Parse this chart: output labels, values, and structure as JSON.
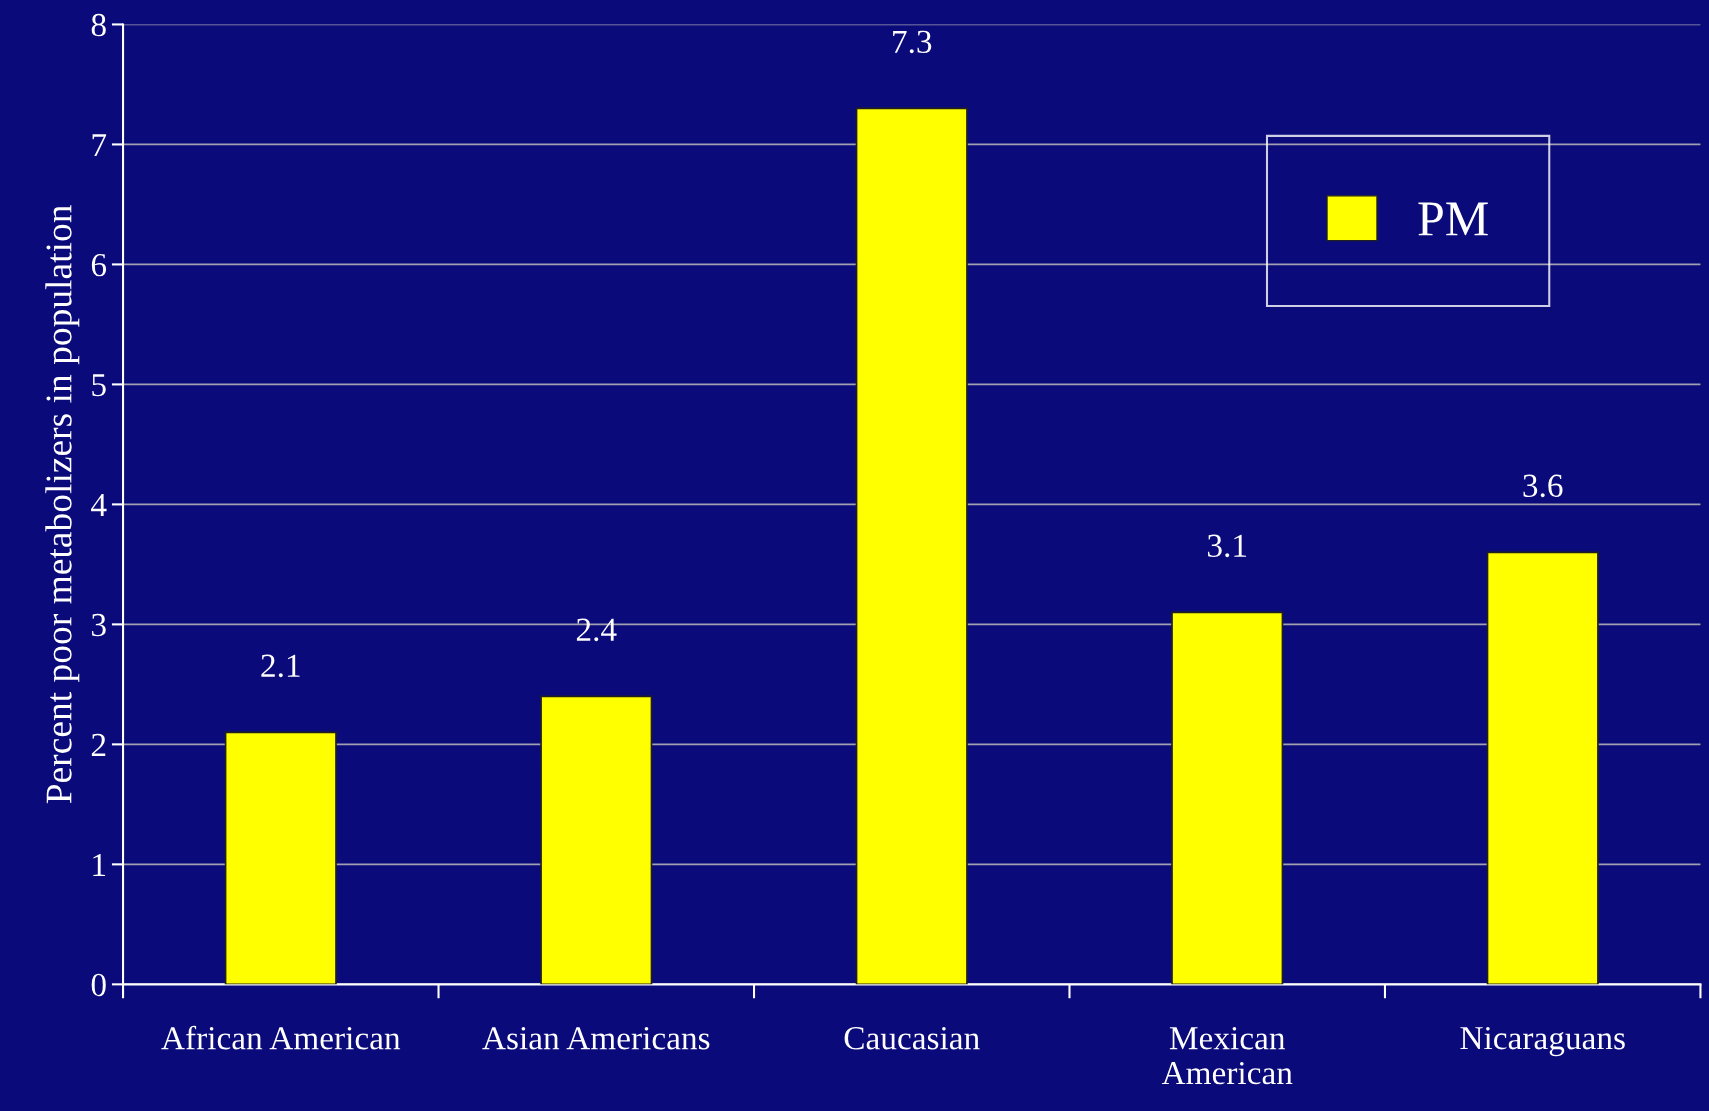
{
  "chart_data": {
    "type": "bar",
    "ylabel": "Percent poor metabolizers in population",
    "categories": [
      "African American",
      "Asian Americans",
      "Caucasian",
      "Mexican\nAmerican",
      "Nicaraguans"
    ],
    "series": [
      {
        "name": "PM",
        "color": "#ffff00",
        "values": [
          2.1,
          2.4,
          7.3,
          3.1,
          3.6
        ]
      }
    ],
    "ylim": [
      0,
      8
    ],
    "yticks": [
      0,
      1,
      2,
      3,
      4,
      5,
      6,
      7,
      8
    ],
    "grid": "y",
    "legend": "top right",
    "data_labels": true
  }
}
